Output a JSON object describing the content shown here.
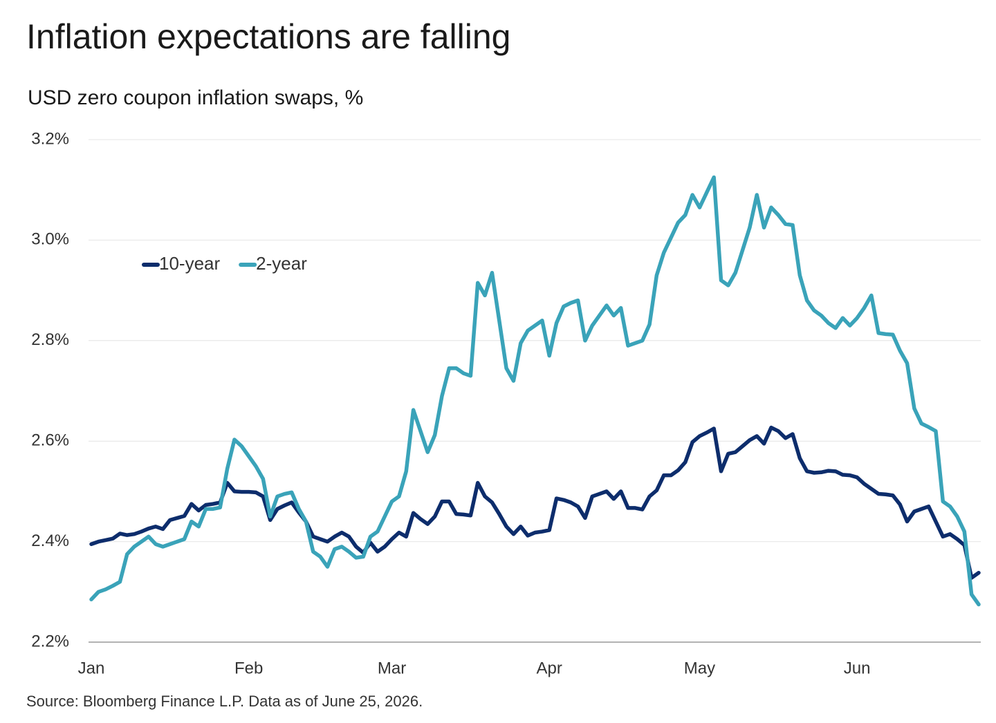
{
  "chart_data": {
    "type": "line",
    "title": "Inflation expectations are falling",
    "subtitle": "USD zero coupon inflation swaps, %",
    "source": "Source: Bloomberg Finance L.P. Data as of June 25, 2026.",
    "categories": [
      "Jan",
      null,
      null,
      null,
      null,
      null,
      null,
      null,
      null,
      null,
      null,
      null,
      null,
      null,
      null,
      null,
      null,
      null,
      null,
      null,
      null,
      null,
      "Feb",
      null,
      null,
      null,
      null,
      null,
      null,
      null,
      null,
      null,
      null,
      null,
      null,
      null,
      null,
      null,
      null,
      null,
      null,
      null,
      "Mar",
      null,
      null,
      null,
      null,
      null,
      null,
      null,
      null,
      null,
      null,
      null,
      null,
      null,
      null,
      null,
      null,
      null,
      null,
      null,
      null,
      null,
      "Apr",
      null,
      null,
      null,
      null,
      null,
      null,
      null,
      null,
      null,
      null,
      null,
      null,
      null,
      null,
      null,
      null,
      null,
      null,
      null,
      null,
      "May",
      null,
      null,
      null,
      null,
      null,
      null,
      null,
      null,
      null,
      null,
      null,
      null,
      null,
      null,
      null,
      null,
      null,
      null,
      null,
      null,
      null,
      "Jun",
      null,
      null,
      null,
      null,
      null,
      null,
      null,
      null,
      null,
      null,
      null,
      null,
      null,
      null,
      null,
      null,
      null
    ],
    "series": [
      {
        "name": "10-year",
        "color": "#0d2d6c",
        "values": [
          2.395,
          2.4,
          2.403,
          2.406,
          2.416,
          2.413,
          2.415,
          2.42,
          2.426,
          2.43,
          2.425,
          2.443,
          2.447,
          2.451,
          2.475,
          2.462,
          2.473,
          2.475,
          2.478,
          2.517,
          2.5,
          2.499,
          2.499,
          2.498,
          2.49,
          2.443,
          2.465,
          2.472,
          2.478,
          2.458,
          2.44,
          2.41,
          2.405,
          2.4,
          2.41,
          2.418,
          2.41,
          2.39,
          2.378,
          2.398,
          2.38,
          2.39,
          2.405,
          2.418,
          2.41,
          2.457,
          2.445,
          2.435,
          2.45,
          2.48,
          2.48,
          2.455,
          2.454,
          2.452,
          2.517,
          2.49,
          2.478,
          2.455,
          2.43,
          2.415,
          2.43,
          2.412,
          2.418,
          2.42,
          2.423,
          2.486,
          2.483,
          2.478,
          2.47,
          2.447,
          2.49,
          2.495,
          2.5,
          2.485,
          2.5,
          2.467,
          2.467,
          2.464,
          2.49,
          2.502,
          2.532,
          2.532,
          2.542,
          2.558,
          2.598,
          2.61,
          2.617,
          2.625,
          2.54,
          2.575,
          2.578,
          2.59,
          2.602,
          2.61,
          2.595,
          2.627,
          2.62,
          2.606,
          2.614,
          2.566,
          2.54,
          2.537,
          2.538,
          2.541,
          2.54,
          2.533,
          2.532,
          2.528,
          2.515,
          2.505,
          2.495,
          2.494,
          2.492,
          2.474,
          2.44,
          2.46,
          2.465,
          2.47,
          2.44,
          2.41,
          2.415,
          2.405,
          2.393,
          2.328,
          2.338
        ]
      },
      {
        "name": "2-year",
        "color": "#3aa3b9",
        "values": [
          2.285,
          2.3,
          2.305,
          2.312,
          2.32,
          2.375,
          2.39,
          2.4,
          2.41,
          2.395,
          2.39,
          2.395,
          2.4,
          2.405,
          2.44,
          2.43,
          2.465,
          2.465,
          2.468,
          2.545,
          2.603,
          2.59,
          2.57,
          2.55,
          2.525,
          2.45,
          2.49,
          2.495,
          2.498,
          2.465,
          2.44,
          2.38,
          2.37,
          2.35,
          2.385,
          2.39,
          2.38,
          2.368,
          2.37,
          2.41,
          2.42,
          2.45,
          2.48,
          2.49,
          2.54,
          2.662,
          2.62,
          2.578,
          2.612,
          2.69,
          2.745,
          2.745,
          2.735,
          2.73,
          2.915,
          2.89,
          2.935,
          2.84,
          2.745,
          2.72,
          2.795,
          2.82,
          2.83,
          2.84,
          2.77,
          2.835,
          2.868,
          2.875,
          2.88,
          2.8,
          2.83,
          2.85,
          2.87,
          2.85,
          2.865,
          2.79,
          2.795,
          2.8,
          2.832,
          2.93,
          2.975,
          3.005,
          3.035,
          3.05,
          3.09,
          3.065,
          3.095,
          3.125,
          2.92,
          2.91,
          2.935,
          2.98,
          3.025,
          3.09,
          3.025,
          3.065,
          3.05,
          3.032,
          3.03,
          2.93,
          2.88,
          2.86,
          2.85,
          2.835,
          2.825,
          2.845,
          2.83,
          2.845,
          2.865,
          2.89,
          2.815,
          2.813,
          2.812,
          2.78,
          2.755,
          2.665,
          2.635,
          2.628,
          2.62,
          2.48,
          2.47,
          2.45,
          2.42,
          2.295,
          2.275
        ]
      }
    ],
    "ylim": [
      2.2,
      3.2
    ],
    "yticks": [
      {
        "value": 2.2,
        "label": "2.2%"
      },
      {
        "value": 2.4,
        "label": "2.4%"
      },
      {
        "value": 2.6,
        "label": "2.6%"
      },
      {
        "value": 2.8,
        "label": "2.8%"
      },
      {
        "value": 3.0,
        "label": "3.0%"
      },
      {
        "value": 3.2,
        "label": "3.2%"
      }
    ],
    "grid": true,
    "legend": "upper left"
  }
}
